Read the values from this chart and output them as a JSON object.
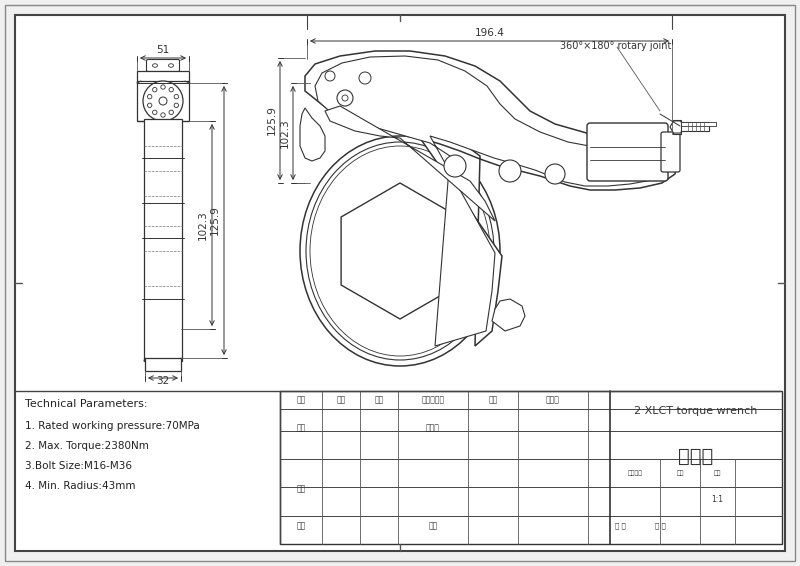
{
  "bg_color": "#f0f0f0",
  "line_color": "#333333",
  "tech_params": [
    "Technical Parameters:",
    "1. Rated working pressure:70MPa",
    "2. Max. Torque:2380Nm",
    "3.Bolt Size:M16-M36",
    "4. Min. Radius:43mm"
  ],
  "dim_196": "196.4",
  "dim_51": "51",
  "dim_32": "32",
  "dim_125": "125.9",
  "dim_102": "102.3",
  "label_rotary": "360°×180° rotary joint",
  "title_block_right": "2 XLCT torque wrench",
  "title_block_zh": "示意图",
  "scale": "1:1",
  "tb_col1": [
    "标记",
    "处数",
    "分区",
    "更改文件号",
    "签名",
    "年月日"
  ],
  "tb_sheji": "设计",
  "tb_biaozhunhua": "标准化",
  "tb_jieduan": "阶段标记",
  "tb_zhongliang": "重量",
  "tb_bili": "比例",
  "tb_shenhe": "审核",
  "tb_gongyi": "工艺",
  "tb_pizhun": "批准",
  "tb_gong": "共 页",
  "tb_di": "第 页"
}
